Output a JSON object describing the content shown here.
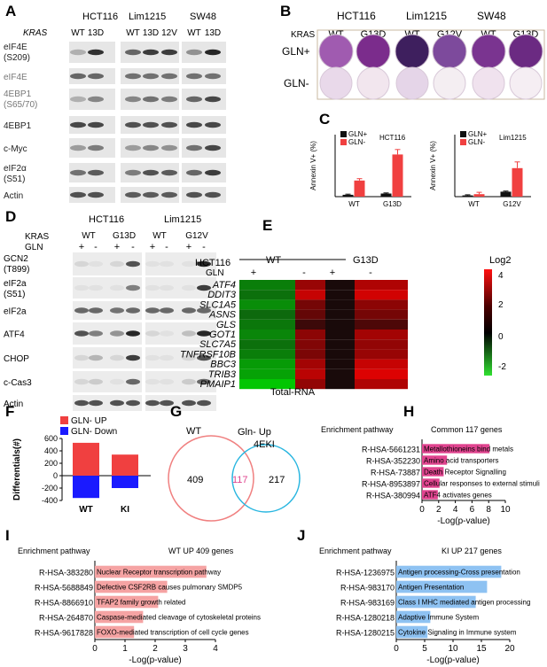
{
  "panels": {
    "A": {
      "letter": "A",
      "header_gene": "KRAS",
      "cell_lines": [
        "HCT116",
        "Lim1215",
        "SW48"
      ],
      "lanes": [
        "WT",
        "13D",
        "WT",
        "13D",
        "12V",
        "WT",
        "13D"
      ],
      "rows": [
        {
          "label": "eIF4E",
          "label2": "(S209)",
          "color": "#222"
        },
        {
          "label": "eIF4E",
          "label2": "",
          "color": "#777"
        },
        {
          "label": "4EBP1",
          "label2": "(S65/70)",
          "color": "#777"
        },
        {
          "label": "4EBP1",
          "label2": "",
          "color": "#222"
        },
        {
          "label": "c-Myc",
          "label2": "",
          "color": "#222"
        },
        {
          "label": "eIF2α",
          "label2": "(S51)",
          "color": "#222"
        },
        {
          "label": "Actin",
          "label2": "",
          "color": "#222"
        }
      ]
    },
    "B": {
      "letter": "B",
      "kras": "KRAS",
      "cell_lines": [
        "HCT116",
        "Lim1215",
        "SW48"
      ],
      "lanes": [
        "WT",
        "G13D",
        "WT",
        "G12V",
        "WT",
        "G13D"
      ],
      "rows": [
        "GLN+",
        "GLN-"
      ]
    },
    "C": {
      "letter": "C"
    },
    "D": {
      "letter": "D",
      "cell_lines": [
        "HCT116",
        "Lim1215"
      ],
      "kras": "KRAS",
      "gln": "GLN",
      "lanes": [
        "WT",
        "G13D",
        "WT",
        "G12V"
      ],
      "gln_signs": [
        "+",
        "-",
        "+",
        "-",
        "+",
        "-",
        "+",
        "-"
      ],
      "rows": [
        {
          "label": "GCN2",
          "label2": "(T899)"
        },
        {
          "label": "eIF2a",
          "label2": "(S51)"
        },
        {
          "label": "eIF2a",
          "label2": ""
        },
        {
          "label": "ATF4",
          "label2": ""
        },
        {
          "label": "CHOP",
          "label2": ""
        },
        {
          "label": "c-Cas3",
          "label2": ""
        },
        {
          "label": "Actin",
          "label2": ""
        }
      ]
    },
    "E": {
      "letter": "E",
      "cell": "HCT116",
      "groups": [
        "WT",
        "G13D"
      ],
      "gln": "GLN",
      "signs": [
        "+",
        "-",
        "+",
        "-"
      ],
      "genes": [
        "ATF4",
        "DDIT3",
        "SLC1A5",
        "ASNS",
        "GLS",
        "GOT1",
        "SLC7A5",
        "TNFRSF10B",
        "BBC3",
        "TRIB3",
        "PMAIP1"
      ],
      "matrix": [
        [
          -1.2,
          2.2,
          0,
          2.6
        ],
        [
          -1.0,
          3.0,
          0,
          3.2
        ],
        [
          -1.4,
          1.6,
          0,
          2.0
        ],
        [
          -0.9,
          1.3,
          0,
          1.6
        ],
        [
          -1.1,
          0.6,
          0,
          0.9
        ],
        [
          -1.3,
          2.0,
          0,
          2.4
        ],
        [
          -1.0,
          1.8,
          0,
          2.1
        ],
        [
          -1.2,
          1.7,
          0,
          2.2
        ],
        [
          -1.6,
          2.4,
          0,
          3.0
        ],
        [
          -1.7,
          2.8,
          0,
          3.4
        ],
        [
          -2.2,
          2.1,
          0,
          2.6
        ]
      ],
      "legend_title": "Log2",
      "legend_ticks": [
        "4",
        "2",
        "0",
        "-2"
      ],
      "xlabel": "Total-RNA"
    },
    "F": {
      "letter": "F"
    },
    "G": {
      "letter": "G",
      "label_left": "WT",
      "label_top": "Gln- Up",
      "label_right": "4EKI",
      "left_only": "409",
      "overlap": "117",
      "right_only": "217"
    },
    "H": {
      "letter": "H"
    },
    "I": {
      "letter": "I"
    },
    "J": {
      "letter": "J"
    }
  },
  "chart_data": [
    {
      "panel": "C-left",
      "type": "bar",
      "title": "HCT116",
      "ylabel": "Annexin V+ (%)",
      "categories": [
        "WT",
        "G13D"
      ],
      "series": [
        {
          "name": "GLN+",
          "color": "#111111",
          "values": [
            3,
            5
          ]
        },
        {
          "name": "GLN-",
          "color": "#f04040",
          "values": [
            26,
            68
          ]
        }
      ],
      "errors": [
        [
          1,
          1
        ],
        [
          3,
          8
        ]
      ],
      "ylim": [
        0,
        100
      ]
    },
    {
      "panel": "C-right",
      "type": "bar",
      "title": "Lim1215",
      "ylabel": "Annexin V+ (%)",
      "categories": [
        "WT",
        "G12V"
      ],
      "series": [
        {
          "name": "GLN+",
          "color": "#111111",
          "values": [
            2,
            8
          ]
        },
        {
          "name": "GLN-",
          "color": "#f04040",
          "values": [
            4,
            46
          ]
        }
      ],
      "errors": [
        [
          1,
          1
        ],
        [
          3,
          10
        ]
      ],
      "ylim": [
        0,
        100
      ]
    },
    {
      "panel": "F",
      "type": "bar",
      "ylabel": "Differentials(#)",
      "categories": [
        "WT",
        "KI"
      ],
      "series": [
        {
          "name": "GLN- UP",
          "color": "#f04040",
          "values": [
            530,
            340
          ]
        },
        {
          "name": "GLN- Down",
          "color": "#1a1aff",
          "values": [
            -360,
            -200
          ]
        }
      ],
      "yticks": [
        600,
        400,
        200,
        0,
        -200,
        -400
      ],
      "ylim": [
        -400,
        600
      ]
    },
    {
      "panel": "H",
      "type": "bar",
      "title": "Enrichment pathway",
      "subtitle": "Common 117 genes",
      "xlabel": "-Log(p-value)",
      "bar_color": "#e0448f",
      "categories": [
        "R-HSA-5661231",
        "R-HSA-352230",
        "R-HSA-73887",
        "R-HSA-8953897",
        "R-HSA-380994"
      ],
      "descriptions": [
        "Metallothioneins bind metals",
        "Amino acid transporters",
        "Death Receptor Signalling",
        "Cellular responses to external stimuli",
        "ATF4 activates genes"
      ],
      "values": [
        8.1,
        3.0,
        2.6,
        2.1,
        1.9
      ],
      "xticks": [
        0,
        2,
        4,
        6,
        8,
        10
      ],
      "xlim": [
        0,
        10
      ]
    },
    {
      "panel": "I",
      "type": "bar",
      "title": "Enrichment pathway",
      "subtitle": "WT UP  409 genes",
      "xlabel": "-Log(p-value)",
      "bar_color": "#f5a3a3",
      "categories": [
        "R-HSA-383280",
        "R-HSA-5688849",
        "R-HSA-8866910",
        "R-HSA-264870",
        "R-HSA-9617828"
      ],
      "descriptions": [
        "Nuclear Receptor transcription pathway",
        "Defective CSF2RB causes pulmonary SMDP5",
        "TFAP2 family growth related",
        "Caspase-mediated cleavage of cytoskeletal proteins",
        "FOXO-mediated transcription of cell cycle genes"
      ],
      "values": [
        3.7,
        2.4,
        2.1,
        1.6,
        1.3
      ],
      "xticks": [
        0,
        1,
        2,
        3,
        4
      ],
      "xlim": [
        0,
        4
      ]
    },
    {
      "panel": "J",
      "type": "bar",
      "title": "Enrichment pathway",
      "subtitle": "KI  UP 217 genes",
      "xlabel": "-Log(p-value)",
      "bar_color": "#8ec2f2",
      "categories": [
        "R-HSA-1236975",
        "R-HSA-983170",
        "R-HSA-983169",
        "R-HSA-1280218",
        "R-HSA-1280215"
      ],
      "descriptions": [
        "Antigen processing-Cross presentation",
        "Antigen Presentation",
        "Class I MHC mediated antigen processing",
        "Adaptive Immune System",
        "Cytokine Signaling in Immune system"
      ],
      "values": [
        18.5,
        16.0,
        14.0,
        6.0,
        5.5
      ],
      "xticks": [
        0,
        5,
        10,
        15,
        20
      ],
      "xlim": [
        0,
        20
      ]
    }
  ]
}
